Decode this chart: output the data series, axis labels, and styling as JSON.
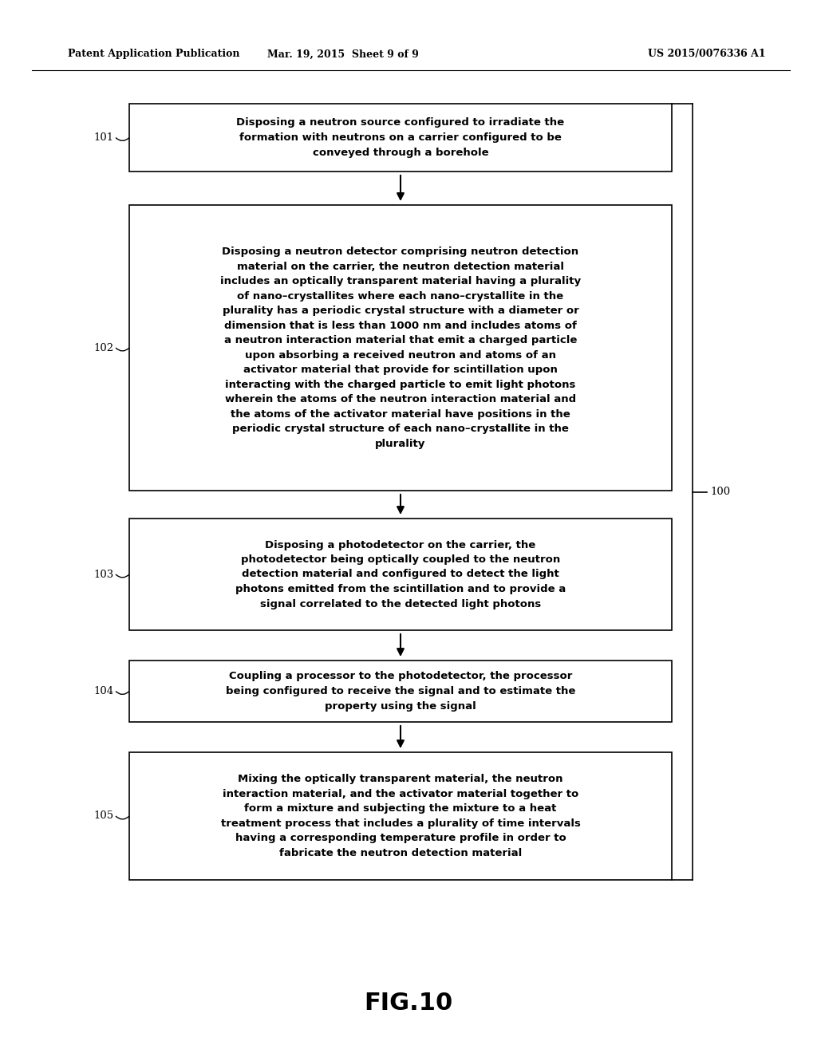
{
  "header_left": "Patent Application Publication",
  "header_mid": "Mar. 19, 2015  Sheet 9 of 9",
  "header_right": "US 2015/0076336 A1",
  "figure_label": "FIG.10",
  "bg_color": "#ffffff",
  "box_color": "#ffffff",
  "box_edge_color": "#000000",
  "text_color": "#000000",
  "boxes": [
    {
      "id": "101",
      "label": "101",
      "text": "Disposing a neutron source configured to irradiate the\nformation with neutrons on a carrier configured to be\nconveyed through a borehole"
    },
    {
      "id": "102",
      "label": "102",
      "text": "Disposing a neutron detector comprising neutron detection\nmaterial on the carrier, the neutron detection material\nincludes an optically transparent material having a plurality\nof nano–crystallites where each nano–crystallite in the\nplurality has a periodic crystal structure with a diameter or\ndimension that is less than 1000 nm and includes atoms of\na neutron interaction material that emit a charged particle\nupon absorbing a received neutron and atoms of an\nactivator material that provide for scintillation upon\ninteracting with the charged particle to emit light photons\nwherein the atoms of the neutron interaction material and\nthe atoms of the activator material have positions in the\nperiodic crystal structure of each nano–crystallite in the\nplurality"
    },
    {
      "id": "103",
      "label": "103",
      "text": "Disposing a photodetector on the carrier, the\nphotodetector being optically coupled to the neutron\ndetection material and configured to detect the light\nphotons emitted from the scintillation and to provide a\nsignal correlated to the detected light photons"
    },
    {
      "id": "104",
      "label": "104",
      "text": "Coupling a processor to the photodetector, the processor\nbeing configured to receive the signal and to estimate the\nproperty using the signal"
    },
    {
      "id": "105",
      "label": "105",
      "text": "Mixing the optically transparent material, the neutron\ninteraction material, and the activator material together to\nform a mixture and subjecting the mixture to a heat\ntreatment process that includes a plurality of time intervals\nhaving a corresponding temperature profile in order to\nfabricate the neutron detection material"
    }
  ],
  "bracket_label": "100",
  "font_size_header": 9.0,
  "font_size_box": 9.5,
  "font_size_label": 9.5,
  "font_size_figure": 22
}
